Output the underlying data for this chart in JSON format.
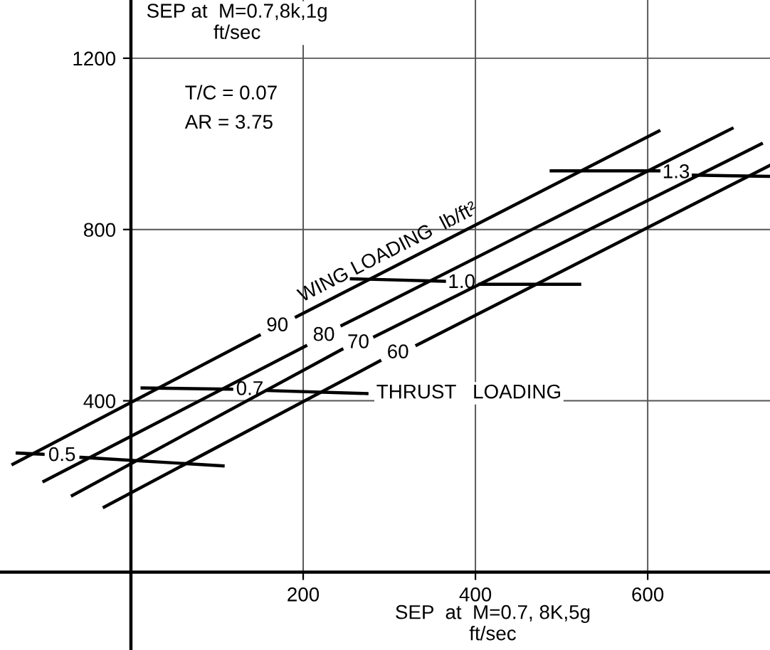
{
  "chart_data": {
    "type": "line",
    "xlabel": "SEP  at  M=0.7, 8K,5g\nft/sec",
    "ylabel": "SEP at  M=0.7,8k,1g\nft/sec",
    "xlim": [
      -152,
      742
    ],
    "ylim": [
      -182,
      1336
    ],
    "xticks": [
      200,
      400,
      600
    ],
    "yticks": [
      400,
      800,
      1200
    ],
    "grid": true,
    "line_style": "solid",
    "marker": "none",
    "annotations": [
      "T/C = 0.07",
      "AR = 3.75",
      "WING LOADING  lb/ft²",
      "THRUST   LOADING"
    ],
    "series": [
      {
        "name": "90",
        "color": "#000000",
        "x": [
          -137,
          149,
          170,
          192,
          613
        ],
        "values": [
          252,
          553,
          null,
          596,
          1030
        ]
      },
      {
        "name": "80",
        "color": "#000000",
        "x": [
          -101,
          203,
          224,
          245,
          698
        ],
        "values": [
          212,
          528,
          null,
          576,
          1036
        ]
      },
      {
        "name": "70",
        "color": "#000000",
        "x": [
          -68,
          245,
          264,
          283,
          732
        ],
        "values": [
          179,
          520,
          null,
          550,
          1000
        ]
      },
      {
        "name": "60",
        "color": "#000000",
        "x": [
          -31,
          289,
          310,
          332,
          742
        ],
        "values": [
          152,
          493,
          null,
          530,
          950
        ]
      },
      {
        "name": "0.5",
        "color": "#000000",
        "x": [
          -132,
          -102,
          -80,
          -58,
          107
        ],
        "values": [
          278,
          275,
          null,
          268,
          248
        ]
      },
      {
        "name": "0.7",
        "color": "#000000",
        "x": [
          13,
          117,
          138,
          159,
          274
        ],
        "values": [
          430,
          427,
          null,
          424,
          417
        ]
      },
      {
        "name": "1.0",
        "color": "#000000",
        "x": [
          256,
          364,
          384,
          405,
          521
        ],
        "values": [
          685,
          679,
          null,
          672,
          672
        ]
      },
      {
        "name": "1.3",
        "color": "#000000",
        "x": [
          488,
          613,
          633,
          653,
          742
        ],
        "values": [
          937,
          937,
          null,
          927,
          924
        ]
      }
    ]
  }
}
